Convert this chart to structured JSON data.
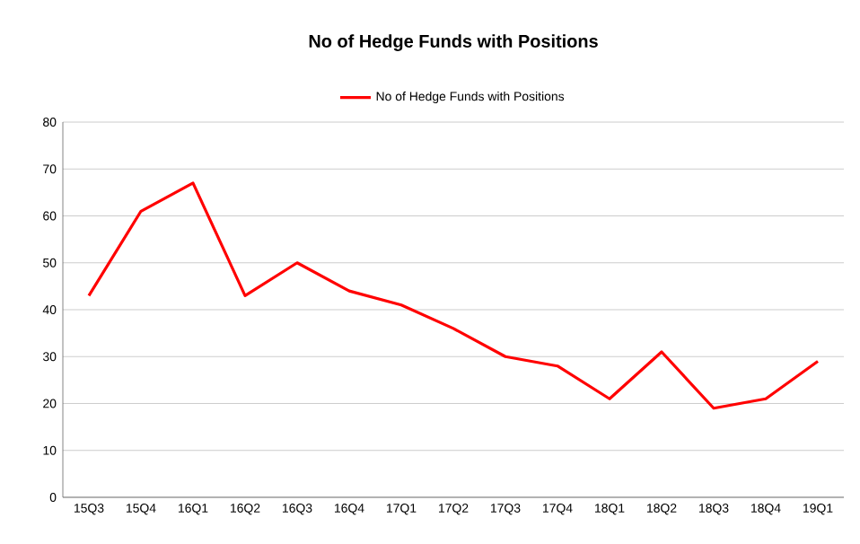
{
  "chart_data": {
    "type": "line",
    "title": "No of Hedge Funds with Positions",
    "categories": [
      "15Q3",
      "15Q4",
      "16Q1",
      "16Q2",
      "16Q3",
      "16Q4",
      "17Q1",
      "17Q2",
      "17Q3",
      "17Q4",
      "18Q1",
      "18Q2",
      "18Q3",
      "18Q4",
      "19Q1"
    ],
    "series": [
      {
        "name": "No of Hedge Funds with Positions",
        "color": "#ff0000",
        "values": [
          43,
          61,
          67,
          43,
          50,
          44,
          41,
          36,
          30,
          28,
          21,
          31,
          19,
          21,
          29
        ]
      }
    ],
    "ylim": [
      0,
      80
    ],
    "yticks": [
      0,
      10,
      20,
      30,
      40,
      50,
      60,
      70,
      80
    ],
    "grid": "y",
    "legend": "top"
  }
}
